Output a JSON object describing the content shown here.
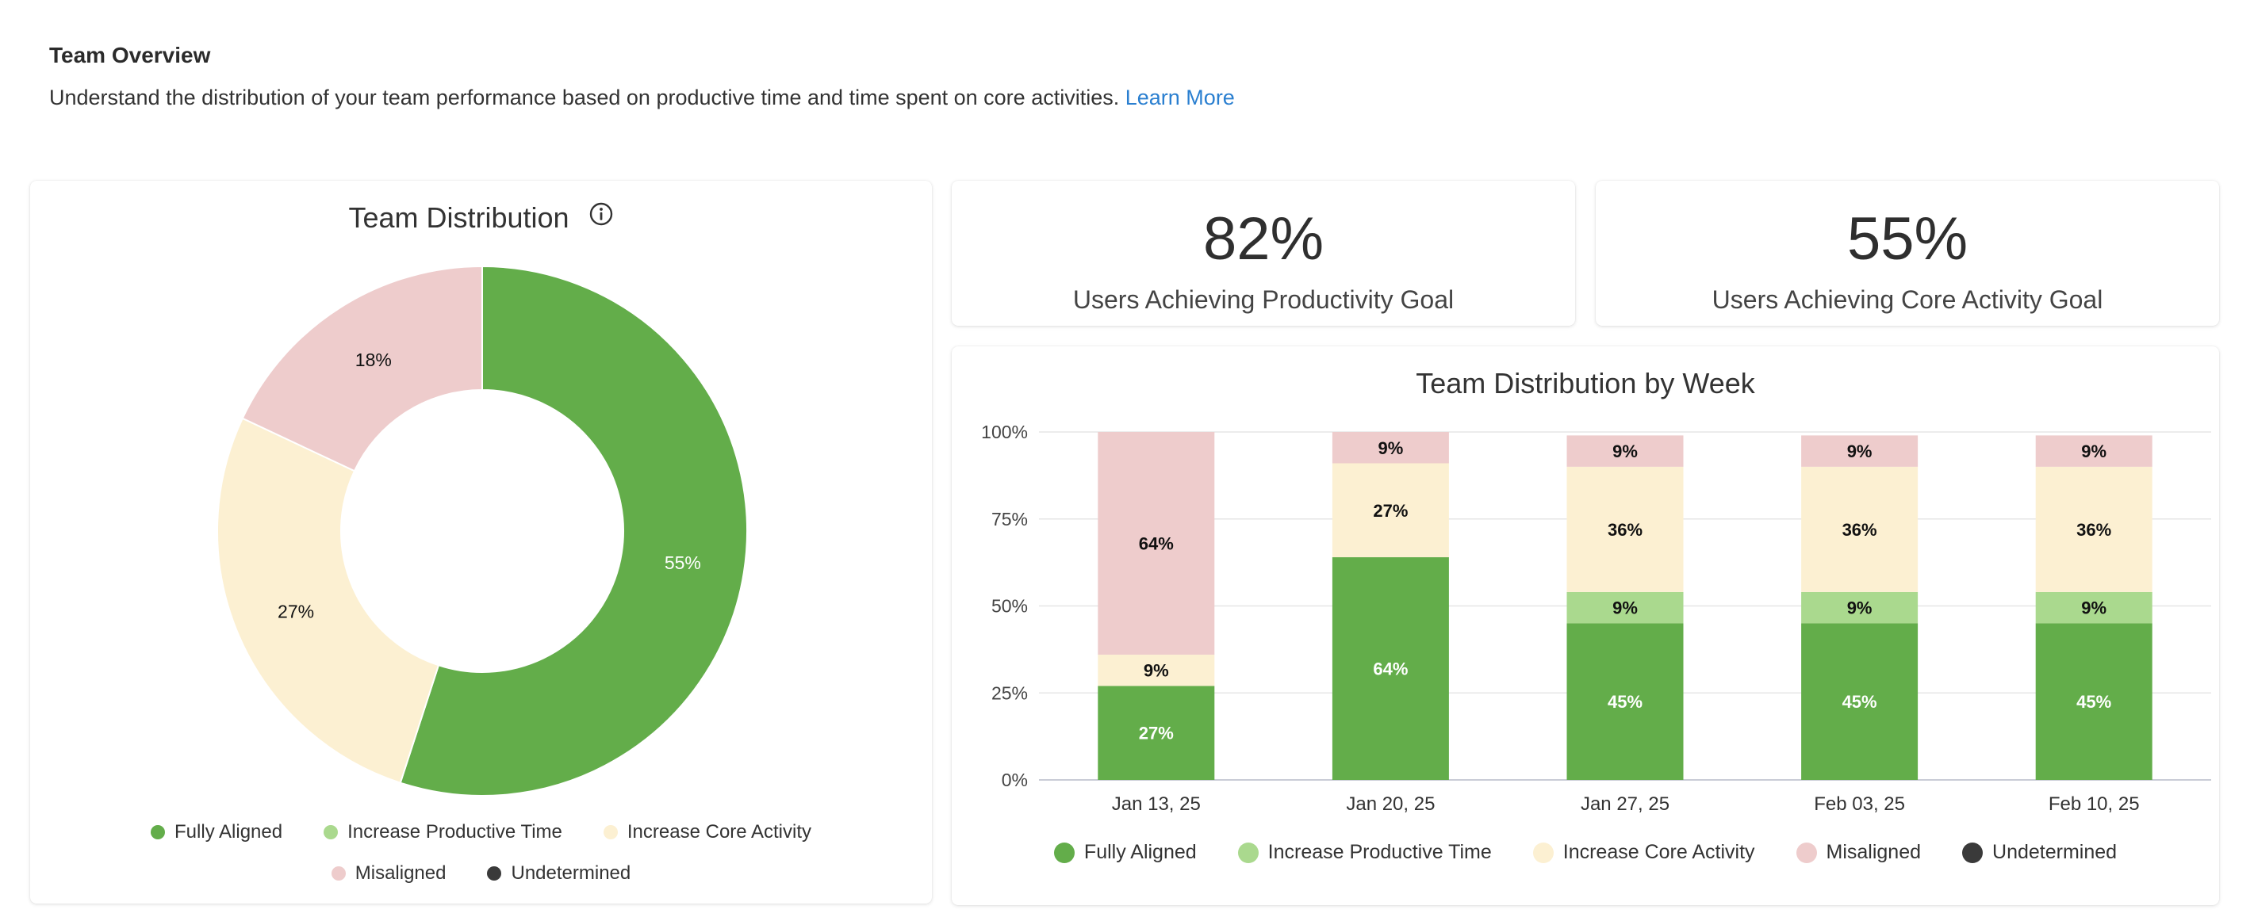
{
  "header": {
    "title": "Team Overview",
    "description": "Understand the distribution of your team performance based on productive time and time spent on core activities.",
    "learn_more": "Learn More"
  },
  "colors": {
    "fully_aligned": "#63ad4a",
    "increase_productive_time": "#aad98e",
    "increase_core_activity": "#fcf0d2",
    "misaligned": "#eecccc",
    "undetermined": "#3a3a3a",
    "link": "#2a7fd0"
  },
  "legend": [
    "Fully Aligned",
    "Increase Productive Time",
    "Increase Core Activity",
    "Misaligned",
    "Undetermined"
  ],
  "team_distribution": {
    "title": "Team Distribution",
    "info_icon": "info-icon"
  },
  "stats": {
    "productivity": {
      "value": "82%",
      "label": "Users Achieving Productivity Goal"
    },
    "core_activity": {
      "value": "55%",
      "label": "Users Achieving Core Activity Goal"
    }
  },
  "week_chart": {
    "title": "Team Distribution by Week"
  },
  "chart_data": [
    {
      "type": "pie",
      "title": "Team Distribution",
      "labels": [
        "Fully Aligned",
        "Increase Productive Time",
        "Increase Core Activity",
        "Misaligned",
        "Undetermined"
      ],
      "values": [
        55,
        0,
        27,
        18,
        0
      ],
      "value_labels": [
        "55%",
        "",
        "27%",
        "18%",
        ""
      ],
      "legend": "bottom"
    },
    {
      "type": "bar",
      "stacked": true,
      "title": "Team Distribution by Week",
      "categories": [
        "Jan 13, 25",
        "Jan 20, 25",
        "Jan 27, 25",
        "Feb 03, 25",
        "Feb 10, 25"
      ],
      "ylim": [
        0,
        100
      ],
      "yticks": [
        "0%",
        "25%",
        "50%",
        "75%",
        "100%"
      ],
      "series": [
        {
          "name": "Fully Aligned",
          "values": [
            27,
            64,
            45,
            45,
            45
          ]
        },
        {
          "name": "Increase Productive Time",
          "values": [
            0,
            0,
            9,
            9,
            9
          ]
        },
        {
          "name": "Increase Core Activity",
          "values": [
            9,
            27,
            36,
            36,
            36
          ]
        },
        {
          "name": "Misaligned",
          "values": [
            64,
            9,
            9,
            9,
            9
          ]
        },
        {
          "name": "Undetermined",
          "values": [
            0,
            0,
            0,
            0,
            0
          ]
        }
      ],
      "legend": "bottom"
    }
  ]
}
